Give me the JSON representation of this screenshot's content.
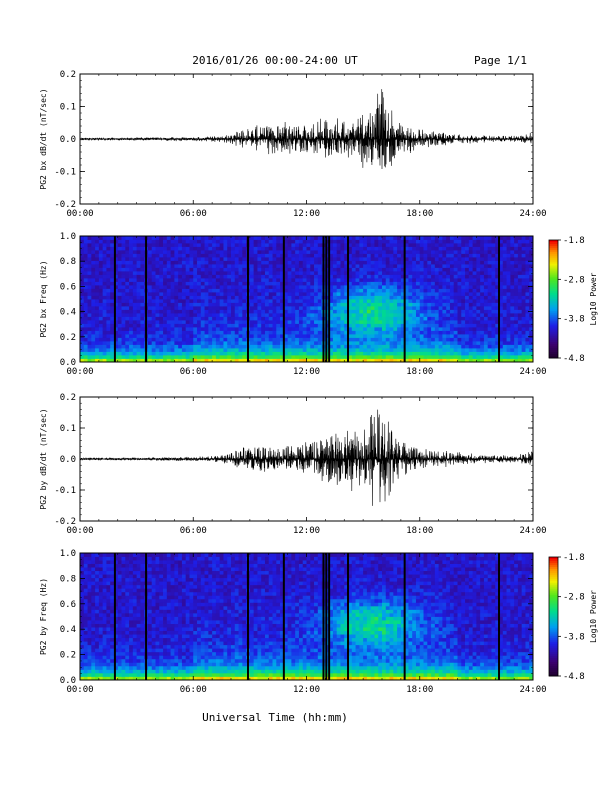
{
  "header": {
    "title": "2016/01/26  00:00-24:00 UT",
    "page": "Page 1/1"
  },
  "footer": {
    "xlabel": "Universal Time (hh:mm)"
  },
  "chart_data": [
    {
      "type": "line",
      "ylabel": "PG2 bx dB/dt (nT/sec)",
      "xlim": [
        0,
        24
      ],
      "ylim": [
        -0.2,
        0.2
      ],
      "x_ticks": [
        "00:00",
        "06:00",
        "12:00",
        "18:00",
        "24:00"
      ],
      "y_ticks": [
        "0.2",
        "0.1",
        "0.0",
        "-0.1",
        "-0.2"
      ],
      "envelope": {
        "x": [
          0,
          2,
          4,
          6,
          7.5,
          8.5,
          9.5,
          10.5,
          11.5,
          12.5,
          13,
          13.5,
          14.5,
          15,
          15.3,
          15.7,
          16.3,
          16.7,
          17.2,
          18,
          19,
          20,
          21,
          22,
          23,
          24
        ],
        "upper": [
          0.004,
          0.004,
          0.005,
          0.007,
          0.01,
          0.03,
          0.045,
          0.05,
          0.045,
          0.055,
          0.06,
          0.06,
          0.055,
          0.075,
          0.09,
          0.175,
          0.11,
          0.06,
          0.045,
          0.03,
          0.02,
          0.015,
          0.012,
          0.01,
          0.009,
          0.02
        ],
        "lower": [
          -0.004,
          -0.004,
          -0.005,
          -0.007,
          -0.01,
          -0.025,
          -0.04,
          -0.045,
          -0.04,
          -0.05,
          -0.055,
          -0.05,
          -0.06,
          -0.08,
          -0.085,
          -0.13,
          -0.1,
          -0.06,
          -0.045,
          -0.03,
          -0.02,
          -0.015,
          -0.012,
          -0.01,
          -0.009,
          -0.015
        ]
      }
    },
    {
      "type": "heatmap",
      "ylabel": "PG2 bx Freq (Hz)",
      "xlim": [
        0,
        24
      ],
      "ylim": [
        0.0,
        1.0
      ],
      "x_ticks": [
        "00:00",
        "06:00",
        "12:00",
        "18:00",
        "24:00"
      ],
      "y_ticks": [
        "1.0",
        "0.8",
        "0.6",
        "0.4",
        "0.2",
        "0.0"
      ],
      "colorbar": {
        "label": "Log10 Power",
        "range": [
          -4.8,
          -1.8
        ],
        "ticks": [
          "-1.8",
          "-2.8",
          "-3.8",
          "-4.8"
        ]
      },
      "gaps_hours": [
        1.85,
        3.5,
        8.9,
        10.8,
        12.9,
        13.05,
        13.2,
        14.2,
        17.2,
        22.2
      ],
      "activity_peak": {
        "x": 15.5,
        "freq": 0.4
      },
      "colors": {
        "low": "#22003a",
        "mid": "#3232ff",
        "high": "#ff2020"
      }
    },
    {
      "type": "line",
      "ylabel": "PG2 by dB/dt (nT/sec)",
      "xlim": [
        0,
        24
      ],
      "ylim": [
        -0.2,
        0.2
      ],
      "x_ticks": [
        "00:00",
        "06:00",
        "12:00",
        "18:00",
        "24:00"
      ],
      "y_ticks": [
        "0.2",
        "0.1",
        "0.0",
        "-0.1",
        "-0.2"
      ],
      "envelope": {
        "x": [
          0,
          2,
          4,
          6,
          7.5,
          8.5,
          9.5,
          10.5,
          11.5,
          12.5,
          13,
          13.5,
          14.5,
          15,
          15.3,
          15.7,
          16.3,
          16.7,
          17.2,
          18,
          19,
          20,
          21,
          22,
          23,
          24
        ],
        "upper": [
          0.004,
          0.004,
          0.005,
          0.007,
          0.012,
          0.035,
          0.04,
          0.04,
          0.045,
          0.06,
          0.065,
          0.08,
          0.1,
          0.12,
          0.13,
          0.2,
          0.14,
          0.08,
          0.05,
          0.035,
          0.025,
          0.02,
          0.015,
          0.012,
          0.01,
          0.025
        ],
        "lower": [
          -0.004,
          -0.004,
          -0.005,
          -0.007,
          -0.012,
          -0.03,
          -0.04,
          -0.04,
          -0.045,
          -0.06,
          -0.07,
          -0.08,
          -0.1,
          -0.11,
          -0.12,
          -0.2,
          -0.13,
          -0.08,
          -0.05,
          -0.035,
          -0.025,
          -0.02,
          -0.015,
          -0.012,
          -0.01,
          -0.02
        ]
      }
    },
    {
      "type": "heatmap",
      "ylabel": "PG2 by Freq (Hz)",
      "xlim": [
        0,
        24
      ],
      "ylim": [
        0.0,
        1.0
      ],
      "x_ticks": [
        "00:00",
        "06:00",
        "12:00",
        "18:00",
        "24:00"
      ],
      "y_ticks": [
        "1.0",
        "0.8",
        "0.6",
        "0.4",
        "0.2",
        "0.0"
      ],
      "colorbar": {
        "label": "Log10 Power",
        "range": [
          -4.8,
          -1.8
        ],
        "ticks": [
          "-1.8",
          "-2.8",
          "-3.8",
          "-4.8"
        ]
      },
      "gaps_hours": [
        1.85,
        3.5,
        8.9,
        10.8,
        12.9,
        13.05,
        13.2,
        14.2,
        17.2,
        22.2
      ],
      "activity_peak": {
        "x": 15.5,
        "freq": 0.45
      },
      "colors": {
        "low": "#22003a",
        "mid": "#3232ff",
        "high": "#ff2020"
      }
    }
  ]
}
